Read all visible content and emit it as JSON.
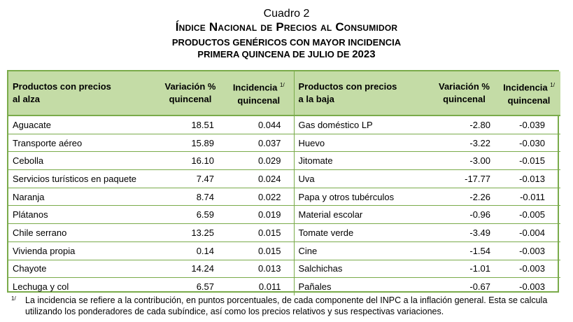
{
  "title": {
    "line1": "Cuadro 2",
    "line2": "Índice Nacional de Precios al Consumidor",
    "line3": "PRODUCTOS GENÉRICOS CON MAYOR INCIDENCIA",
    "line4_prefix": "PRIMERA QUINCENA DE JULIO DE ",
    "line4_year": "2023"
  },
  "headers": {
    "up_products_l1": "Productos con precios",
    "up_products_l2": "al alza",
    "variation_l1": "Variación %",
    "variation_l2": "quincenal",
    "incidence_l1": "Incidencia",
    "incidence_sup": "1/",
    "incidence_l2": "quincenal",
    "down_products_l1": "Productos con precios",
    "down_products_l2": "a la baja"
  },
  "rows": [
    {
      "up_name": "Aguacate",
      "up_var": "18.51",
      "up_inc": "0.044",
      "down_name": "Gas doméstico LP",
      "down_var": "-2.80",
      "down_inc": "-0.039"
    },
    {
      "up_name": "Transporte aéreo",
      "up_var": "15.89",
      "up_inc": "0.037",
      "down_name": "Huevo",
      "down_var": "-3.22",
      "down_inc": "-0.030"
    },
    {
      "up_name": "Cebolla",
      "up_var": "16.10",
      "up_inc": "0.029",
      "down_name": "Jitomate",
      "down_var": "-3.00",
      "down_inc": "-0.015"
    },
    {
      "up_name": "Servicios turísticos en paquete",
      "up_var": "7.47",
      "up_inc": "0.024",
      "down_name": "Uva",
      "down_var": "-17.77",
      "down_inc": "-0.013"
    },
    {
      "up_name": "Naranja",
      "up_var": "8.74",
      "up_inc": "0.022",
      "down_name": "Papa y otros tubérculos",
      "down_var": "-2.26",
      "down_inc": "-0.011"
    },
    {
      "up_name": "Plátanos",
      "up_var": "6.59",
      "up_inc": "0.019",
      "down_name": "Material escolar",
      "down_var": "-0.96",
      "down_inc": "-0.005"
    },
    {
      "up_name": "Chile serrano",
      "up_var": "13.25",
      "up_inc": "0.015",
      "down_name": "Tomate verde",
      "down_var": "-3.49",
      "down_inc": "-0.004"
    },
    {
      "up_name": "Vivienda propia",
      "up_var": "0.14",
      "up_inc": "0.015",
      "down_name": "Cine",
      "down_var": "-1.54",
      "down_inc": "-0.003"
    },
    {
      "up_name": "Chayote",
      "up_var": "14.24",
      "up_inc": "0.013",
      "down_name": "Salchichas",
      "down_var": "-1.01",
      "down_inc": "-0.003"
    },
    {
      "up_name": "Lechuga y col",
      "up_var": "6.57",
      "up_inc": "0.011",
      "down_name": "Pañales",
      "down_var": "-0.67",
      "down_inc": "-0.003"
    }
  ],
  "footnote": {
    "mark": "1/",
    "text": "La incidencia se refiere a la contribución, en puntos porcentuales, de cada componente del INPC a la inflación general. Esta se calcula utilizando los ponderadores de cada subíndice, así como los precios relativos y sus respectivas variaciones."
  }
}
